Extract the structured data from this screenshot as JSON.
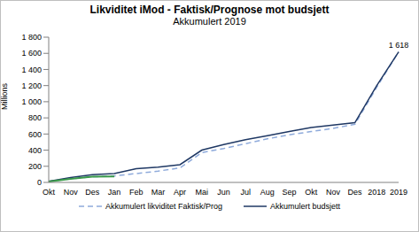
{
  "chart_data": {
    "type": "line",
    "title": "Likviditet iMod - Faktisk/Prognose mot budsjett",
    "subtitle": "Akkumulert 2019",
    "y_label": "Millions",
    "categories": [
      "Okt",
      "Nov",
      "Des",
      "Jan",
      "Feb",
      "Mar",
      "Apr",
      "Mai",
      "Jun",
      "Jul",
      "Aug",
      "Sep",
      "Okt",
      "Nov",
      "Des",
      "2018",
      "2019"
    ],
    "series": [
      {
        "name": "Akkumulert likviditet Faktisk/Prog",
        "color": "#8eaadb",
        "line_style": "dashed",
        "values": [
          10,
          45,
          70,
          80,
          110,
          140,
          180,
          370,
          420,
          480,
          540,
          590,
          630,
          670,
          720,
          1180,
          1618
        ]
      },
      {
        "name": "Akkumulert budsjett",
        "color": "#1f3864",
        "line_style": "solid",
        "values": [
          15,
          60,
          95,
          110,
          170,
          190,
          220,
          400,
          470,
          530,
          580,
          630,
          680,
          710,
          740,
          1200,
          1618
        ]
      },
      {
        "color": "#3a9a4a",
        "line_style": "solid",
        "values": [
          10,
          45,
          70,
          75,
          null,
          null,
          null,
          null,
          null,
          null,
          null,
          null,
          null,
          null,
          null,
          null,
          null
        ]
      }
    ],
    "ylim": [
      0,
      1800
    ],
    "yticks": [
      0,
      200,
      400,
      600,
      800,
      {
        "value": 1000,
        "label": "1 000"
      },
      {
        "value": 1200,
        "label": "1 200"
      },
      {
        "value": 1400,
        "label": "1 400"
      },
      {
        "value": 1600,
        "label": "1 600"
      },
      {
        "value": 1800,
        "label": "1 800"
      }
    ],
    "annotations": [
      {
        "text": "1 618",
        "category": "2019",
        "value": 1618
      }
    ],
    "grid": false,
    "legend": "bottom"
  }
}
